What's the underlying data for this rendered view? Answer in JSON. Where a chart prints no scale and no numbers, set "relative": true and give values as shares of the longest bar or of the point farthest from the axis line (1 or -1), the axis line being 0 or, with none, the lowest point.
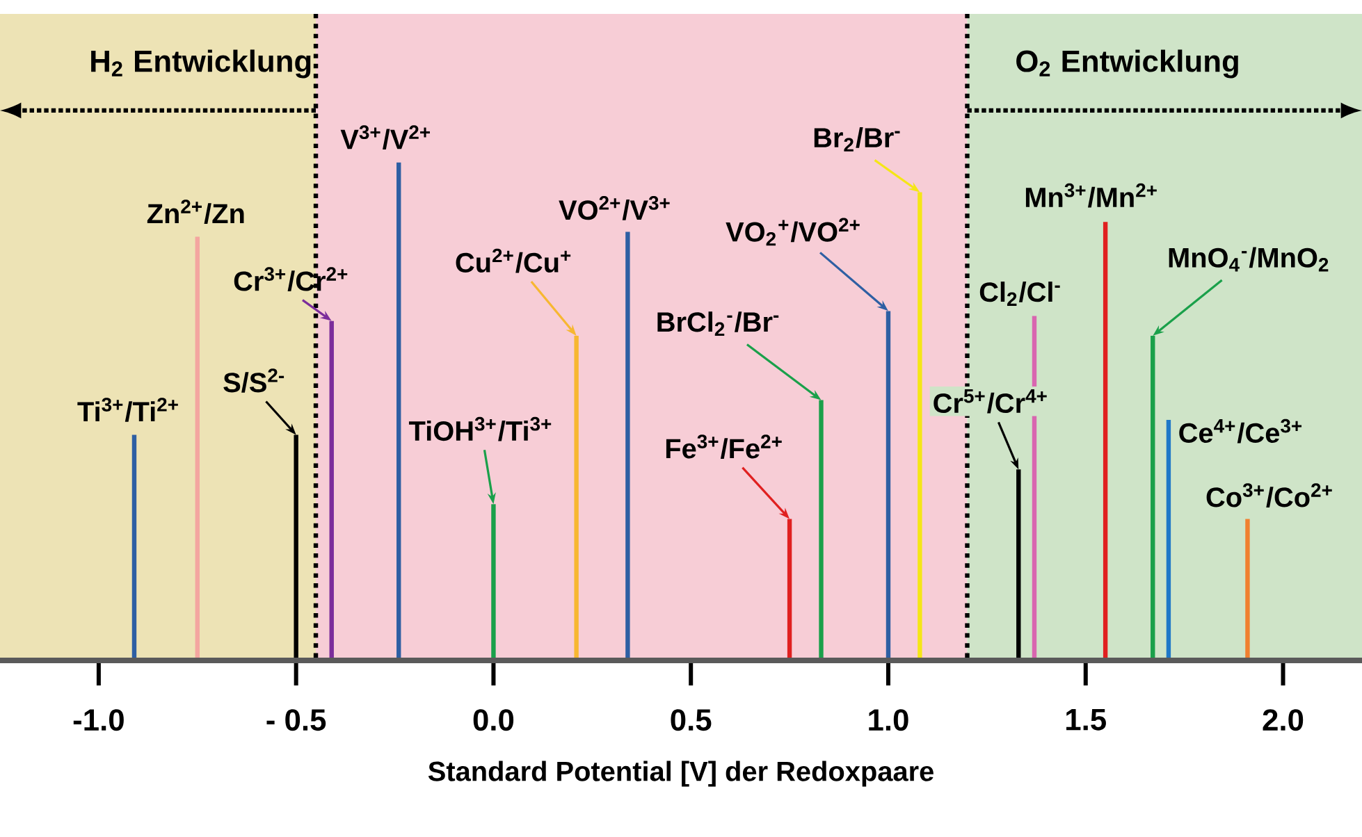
{
  "chart_data": {
    "type": "bar",
    "relative": true,
    "xlabel": "Standard Potential [V] der Redoxpaare",
    "xlim": [
      -1.25,
      2.2
    ],
    "xticks": [
      {
        "value": -1.0,
        "label": "-1.0"
      },
      {
        "value": -0.5,
        "label": "- 0.5"
      },
      {
        "value": 0.0,
        "label": "0.0"
      },
      {
        "value": 0.5,
        "label": "0.5"
      },
      {
        "value": 1.0,
        "label": "1.0"
      },
      {
        "value": 1.5,
        "label": "1.5"
      },
      {
        "value": 2.0,
        "label": "2.0"
      }
    ],
    "tick_labels": "x",
    "bands": [
      {
        "axis": "x",
        "from": -1.25,
        "to": -0.45,
        "label": "H$_{2}$ Entwicklung",
        "color": "#ede3b5"
      },
      {
        "axis": "x",
        "from": -0.45,
        "to": 1.2,
        "color": "#f7cdd6"
      },
      {
        "axis": "x",
        "from": 1.2,
        "to": 2.2,
        "label": "O$_{2}$ Entwicklung",
        "color": "#cfe4c8"
      }
    ],
    "ref_lines": [
      {
        "axis": "x",
        "value": -0.45,
        "color": "#000000",
        "line_style": "dotted"
      },
      {
        "axis": "x",
        "value": 1.2,
        "color": "#000000",
        "line_style": "dotted"
      }
    ],
    "series": [
      {
        "name": "Ti$^{3+}$/Ti$^{2+}$",
        "color": "#2e5fa3",
        "x": [
          -0.91
        ],
        "values": [
          0.45
        ]
      },
      {
        "name": "Zn$^{2+}$/Zn",
        "color": "#f4a6a0",
        "x": [
          -0.75
        ],
        "values": [
          0.85
        ]
      },
      {
        "name": "S/S$^{2-}$",
        "color": "#000000",
        "x": [
          -0.5
        ],
        "values": [
          0.45
        ]
      },
      {
        "name": "Cr$^{3+}$/Cr$^{2+}$",
        "color": "#7b2d9b",
        "x": [
          -0.41
        ],
        "values": [
          0.68
        ]
      },
      {
        "name": "V$^{3+}$/V$^{2+}$",
        "color": "#2e5fa3",
        "x": [
          -0.24
        ],
        "values": [
          1
        ]
      },
      {
        "name": "TiOH$^{3+}$/Ti$^{3+}$",
        "color": "#1aa04a",
        "x": [
          0.0
        ],
        "values": [
          0.31
        ]
      },
      {
        "name": "Cu$^{2+}$/Cu$^{+}$",
        "color": "#f7b731",
        "x": [
          0.21
        ],
        "values": [
          0.65
        ]
      },
      {
        "name": "VO$^{2+}$/V$^{3+}$",
        "color": "#2e5fa3",
        "x": [
          0.34
        ],
        "values": [
          0.86
        ]
      },
      {
        "name": "Fe$^{3+}$/Fe$^{2+}$",
        "color": "#e02020",
        "x": [
          0.75
        ],
        "values": [
          0.28
        ]
      },
      {
        "name": "BrCl$_{2}$$^{-}$/Br$^{-}$",
        "color": "#1aa04a",
        "x": [
          0.83
        ],
        "values": [
          0.52
        ]
      },
      {
        "name": "VO$_{2}$$^{+}$/VO$^{2+}$",
        "color": "#2e5fa3",
        "x": [
          1.0
        ],
        "values": [
          0.7
        ]
      },
      {
        "name": "Br$_{2}$/Br$^{-}$",
        "color": "#f5e616",
        "x": [
          1.08
        ],
        "values": [
          0.94
        ]
      },
      {
        "name": "Cr$^{5+}$/Cr$^{4+}$",
        "color": "#000000",
        "x": [
          1.33
        ],
        "values": [
          0.38
        ]
      },
      {
        "name": "Cl$_{2}$/Cl$^{-}$",
        "color": "#d966b0",
        "x": [
          1.37
        ],
        "values": [
          0.69
        ]
      },
      {
        "name": "Mn$^{3+}$/Mn$^{2+}$",
        "color": "#e02020",
        "x": [
          1.55
        ],
        "values": [
          0.88
        ]
      },
      {
        "name": "MnO$_{4}$$^{-}$/MnO$_{2}$",
        "color": "#1aa04a",
        "x": [
          1.67
        ],
        "values": [
          0.65
        ]
      },
      {
        "name": "Ce$^{4+}$/Ce$^{3+}$",
        "color": "#1f78c8",
        "x": [
          1.71
        ],
        "values": [
          0.48
        ]
      },
      {
        "name": "Co$^{3+}$/Co$^{2+}$",
        "color": "#f08030",
        "x": [
          1.91
        ],
        "values": [
          0.28
        ]
      }
    ]
  }
}
